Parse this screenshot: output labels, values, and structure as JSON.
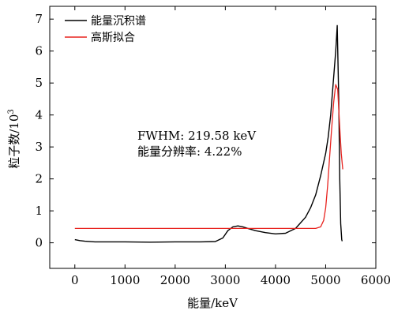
{
  "chart_data": {
    "type": "line",
    "xlabel": "能量/keV",
    "ylabel": "粒子数/10",
    "ylabel_exp": "3",
    "xlim": [
      -500,
      6000
    ],
    "ylim": [
      -0.8,
      7.4
    ],
    "xticks": [
      0,
      1000,
      2000,
      3000,
      4000,
      5000,
      6000
    ],
    "yticks": [
      0,
      1,
      2,
      3,
      4,
      5,
      6,
      7
    ],
    "tick_labels_x": [
      "0",
      "1000",
      "2000",
      "3000",
      "4000",
      "5000",
      "6000"
    ],
    "tick_labels_y": [
      "0",
      "1",
      "2",
      "3",
      "4",
      "5",
      "6",
      "7"
    ],
    "grid": false,
    "legend_placement": "top-left",
    "annotations": [
      "FWHM: 219.58 keV",
      "能量分辨率: 4.22%"
    ],
    "series": [
      {
        "name": "能量沉积谱",
        "color": "#000000",
        "x": [
          0,
          100,
          200,
          400,
          600,
          1000,
          1500,
          2000,
          2500,
          2800,
          2950,
          3050,
          3150,
          3250,
          3350,
          3450,
          3600,
          3800,
          4000,
          4200,
          4400,
          4600,
          4700,
          4800,
          4900,
          5000,
          5050,
          5100,
          5150,
          5200,
          5230,
          5260,
          5280,
          5300,
          5320,
          5330
        ],
        "y": [
          0.1,
          0.07,
          0.05,
          0.03,
          0.03,
          0.03,
          0.02,
          0.03,
          0.03,
          0.04,
          0.15,
          0.38,
          0.5,
          0.53,
          0.5,
          0.45,
          0.38,
          0.32,
          0.28,
          0.3,
          0.45,
          0.8,
          1.1,
          1.5,
          2.1,
          2.8,
          3.3,
          4.0,
          5.0,
          6.0,
          6.8,
          4.5,
          2.0,
          0.6,
          0.1,
          0.05
        ]
      },
      {
        "name": "高斯拟合",
        "color": "#e8231f",
        "x": [
          0,
          500,
          1000,
          1500,
          2000,
          2500,
          2800,
          2950,
          3050,
          3150,
          3250,
          3400,
          3600,
          3800,
          4000,
          4200,
          4400,
          4600,
          4800,
          4900,
          4960,
          5000,
          5040,
          5080,
          5120,
          5160,
          5200,
          5240,
          5280,
          5310,
          5340
        ],
        "y": [
          0.45,
          0.45,
          0.45,
          0.45,
          0.45,
          0.45,
          0.45,
          0.45,
          0.45,
          0.45,
          0.45,
          0.45,
          0.45,
          0.45,
          0.45,
          0.45,
          0.45,
          0.45,
          0.45,
          0.5,
          0.7,
          1.1,
          1.8,
          2.7,
          3.6,
          4.4,
          4.95,
          4.8,
          3.6,
          2.8,
          2.3
        ]
      }
    ]
  }
}
